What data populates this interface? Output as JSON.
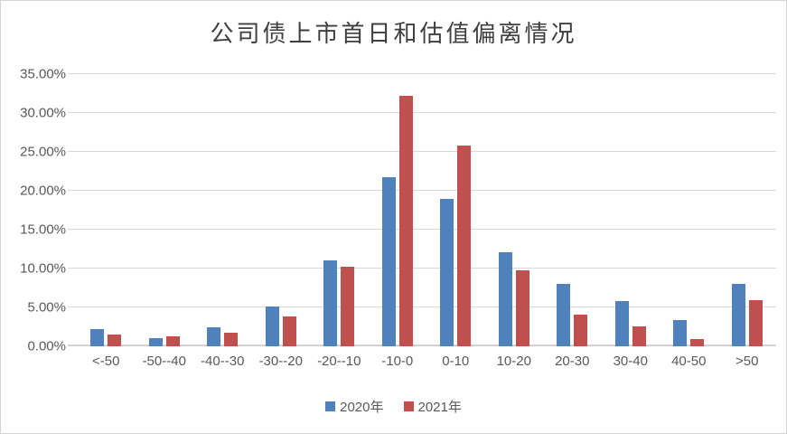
{
  "chart_data": {
    "type": "bar",
    "title": "公司债上市首日和估值偏离情况",
    "categories": [
      "<-50",
      "-50--40",
      "-40--30",
      "-30--20",
      "-20--10",
      "-10-0",
      "0-10",
      "10-20",
      "20-30",
      "30-40",
      "40-50",
      ">50"
    ],
    "series": [
      {
        "name": "2020年",
        "color": "#4F81BD",
        "values": [
          2.2,
          1.0,
          2.5,
          5.1,
          11.1,
          21.7,
          18.9,
          12.1,
          8.0,
          5.8,
          3.4,
          8.0
        ]
      },
      {
        "name": "2021年",
        "color": "#C0504D",
        "values": [
          1.5,
          1.3,
          1.7,
          3.8,
          10.2,
          32.2,
          25.8,
          9.8,
          4.1,
          2.6,
          0.9,
          5.9
        ]
      }
    ],
    "xlabel": "",
    "ylabel": "",
    "y_axis": {
      "min": 0,
      "max": 35,
      "step": 5,
      "tick_labels": [
        "0.00%",
        "5.00%",
        "10.00%",
        "15.00%",
        "20.00%",
        "25.00%",
        "30.00%",
        "35.00%"
      ]
    },
    "grid": true,
    "legend_position": "bottom"
  },
  "colors": {
    "series_2020": "#4F81BD",
    "series_2021": "#C0504D",
    "gridline": "#D9D9D9",
    "axis_text": "#595959",
    "title_text": "#3F3F3F",
    "chart_border": "#D6D6D6",
    "background": "#FFFFFF"
  }
}
